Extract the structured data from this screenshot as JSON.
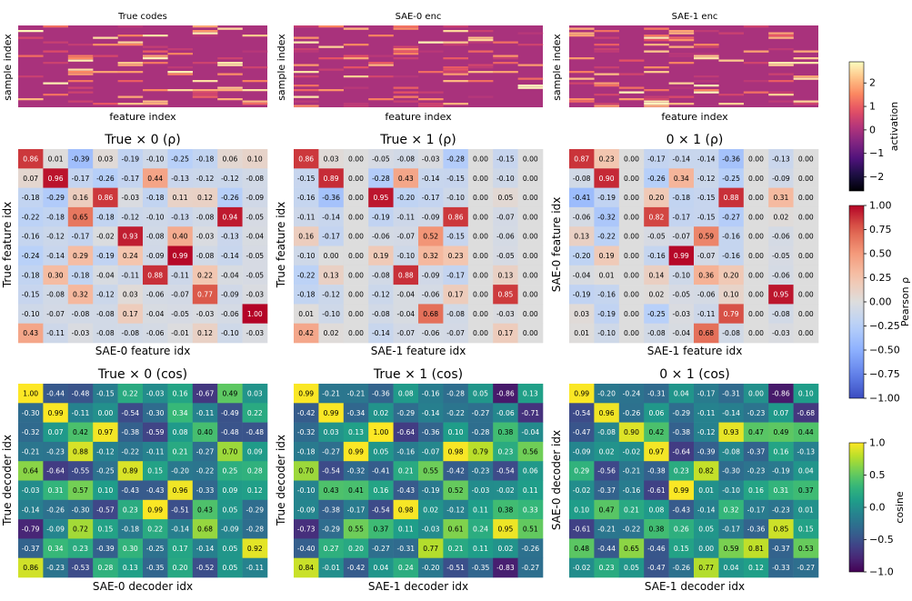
{
  "panels_top": [
    {
      "title": "True codes",
      "xlabel": "feature index",
      "ylabel": "sample index"
    },
    {
      "title": "SAE-0 enc",
      "xlabel": "feature index",
      "ylabel": "sample index"
    },
    {
      "title": "SAE-1 enc",
      "xlabel": "feature index",
      "ylabel": "sample index"
    }
  ],
  "colorbars": {
    "activation": {
      "label": "activation",
      "ticks": [
        "2",
        "1",
        "0",
        "−1",
        "−2"
      ],
      "tick_values": [
        2,
        1,
        0,
        -1,
        -2
      ],
      "range": [
        -2.6,
        2.9
      ],
      "colormap": "magma"
    },
    "pearson": {
      "label": "Pearson ρ",
      "ticks": [
        "1.00",
        "0.75",
        "0.50",
        "0.25",
        "0.00",
        "−0.25",
        "−0.50",
        "−0.75",
        "−1.00"
      ],
      "tick_values": [
        1,
        0.75,
        0.5,
        0.25,
        0,
        -0.25,
        -0.5,
        -0.75,
        -1
      ],
      "range": [
        -1,
        1
      ],
      "colormap": "coolwarm"
    },
    "cosine": {
      "label": "cosine",
      "ticks": [
        "1.0",
        "0.5",
        "0.0",
        "−0.5",
        "−1.0"
      ],
      "tick_values": [
        1,
        0.5,
        0,
        -0.5,
        -1
      ],
      "range": [
        -1,
        1
      ],
      "colormap": "viridis"
    }
  },
  "chart_data": [
    {
      "type": "heatmap",
      "title": "True × 0 (ρ)",
      "xlabel": "SAE-0 feature idx",
      "ylabel": "True feature idx",
      "colormap": "coolwarm",
      "values": [
        [
          0.86,
          0.01,
          -0.39,
          0.03,
          -0.19,
          -0.1,
          -0.25,
          -0.18,
          0.06,
          0.1
        ],
        [
          0.07,
          0.96,
          -0.17,
          -0.26,
          -0.17,
          0.44,
          -0.13,
          -0.12,
          -0.12,
          -0.08
        ],
        [
          -0.18,
          -0.29,
          0.16,
          0.86,
          -0.03,
          -0.18,
          0.11,
          0.12,
          -0.26,
          -0.09
        ],
        [
          -0.22,
          -0.18,
          0.65,
          -0.18,
          -0.12,
          -0.1,
          -0.13,
          -0.08,
          0.94,
          -0.05
        ],
        [
          -0.16,
          -0.12,
          -0.17,
          -0.02,
          0.93,
          -0.08,
          0.4,
          -0.03,
          -0.13,
          -0.04
        ],
        [
          -0.24,
          -0.14,
          0.29,
          -0.19,
          0.24,
          -0.09,
          0.99,
          -0.08,
          -0.14,
          -0.05
        ],
        [
          -0.18,
          0.3,
          -0.18,
          -0.04,
          -0.11,
          0.88,
          -0.11,
          0.22,
          -0.04,
          -0.05
        ],
        [
          -0.15,
          -0.08,
          0.32,
          -0.12,
          0.03,
          -0.06,
          -0.07,
          0.77,
          -0.09,
          -0.03
        ],
        [
          -0.1,
          -0.07,
          -0.08,
          -0.08,
          0.17,
          -0.04,
          -0.05,
          -0.03,
          -0.06,
          1.0
        ],
        [
          0.43,
          -0.11,
          -0.03,
          -0.08,
          -0.08,
          -0.06,
          -0.01,
          0.12,
          -0.1,
          -0.03
        ]
      ]
    },
    {
      "type": "heatmap",
      "title": "True × 1 (ρ)",
      "xlabel": "SAE-1 feature idx",
      "ylabel": "True feature idx",
      "colormap": "coolwarm",
      "values": [
        [
          0.86,
          0.03,
          0.0,
          -0.05,
          -0.08,
          -0.03,
          -0.28,
          0.0,
          -0.15,
          0.0
        ],
        [
          -0.15,
          0.89,
          0.0,
          -0.28,
          0.43,
          -0.14,
          -0.15,
          0.0,
          -0.1,
          0.0
        ],
        [
          -0.16,
          -0.36,
          0.0,
          0.95,
          -0.2,
          -0.17,
          -0.1,
          0.0,
          0.05,
          0.0
        ],
        [
          -0.11,
          -0.14,
          0.0,
          -0.19,
          -0.11,
          -0.09,
          0.86,
          0.0,
          -0.07,
          0.0
        ],
        [
          0.16,
          -0.17,
          0.0,
          -0.06,
          -0.07,
          0.52,
          -0.15,
          0.0,
          -0.06,
          0.0
        ],
        [
          -0.1,
          -0.0,
          0.0,
          0.19,
          -0.1,
          0.32,
          0.23,
          0.0,
          -0.05,
          0.0
        ],
        [
          -0.22,
          0.13,
          0.0,
          -0.08,
          0.88,
          -0.09,
          -0.17,
          0.0,
          0.13,
          0.0
        ],
        [
          -0.18,
          -0.12,
          0.0,
          -0.12,
          -0.04,
          -0.06,
          0.17,
          0.0,
          0.85,
          0.0
        ],
        [
          0.01,
          -0.1,
          0.0,
          -0.08,
          -0.04,
          0.68,
          -0.08,
          0.0,
          -0.03,
          0.0
        ],
        [
          0.42,
          0.02,
          0.0,
          -0.14,
          -0.07,
          -0.06,
          -0.07,
          0.0,
          0.17,
          0.0
        ]
      ]
    },
    {
      "type": "heatmap",
      "title": "0 × 1 (ρ)",
      "xlabel": "SAE-1 feature idx",
      "ylabel": "SAE-0 feature idx",
      "colormap": "coolwarm",
      "values": [
        [
          0.87,
          0.23,
          0.0,
          -0.17,
          -0.14,
          -0.14,
          -0.36,
          0.0,
          -0.13,
          0.0
        ],
        [
          -0.08,
          0.9,
          0.0,
          -0.26,
          0.34,
          -0.12,
          -0.25,
          0.0,
          -0.09,
          0.0
        ],
        [
          -0.41,
          -0.19,
          0.0,
          0.2,
          -0.18,
          -0.15,
          0.88,
          0.0,
          0.31,
          0.0
        ],
        [
          -0.06,
          -0.32,
          0.0,
          0.82,
          -0.17,
          -0.15,
          -0.27,
          0.0,
          0.02,
          0.0
        ],
        [
          0.13,
          -0.22,
          0.0,
          -0.05,
          -0.07,
          0.59,
          -0.16,
          0.0,
          -0.06,
          0.0
        ],
        [
          -0.2,
          0.19,
          0.0,
          -0.16,
          0.99,
          -0.07,
          -0.16,
          0.0,
          -0.05,
          0.0
        ],
        [
          -0.04,
          0.01,
          0.0,
          0.14,
          -0.1,
          0.36,
          0.2,
          0.0,
          -0.06,
          0.0
        ],
        [
          -0.19,
          -0.16,
          0.0,
          0.02,
          -0.05,
          -0.06,
          0.1,
          0.0,
          0.95,
          0.0
        ],
        [
          0.03,
          -0.19,
          0.0,
          -0.25,
          -0.03,
          -0.11,
          0.79,
          0.0,
          -0.08,
          0.0
        ],
        [
          0.01,
          -0.1,
          0.0,
          -0.08,
          -0.04,
          0.68,
          -0.08,
          0.0,
          -0.03,
          0.0
        ]
      ]
    },
    {
      "type": "heatmap",
      "title": "True × 0 (cos)",
      "xlabel": "SAE-0 decoder idx",
      "ylabel": "True decoder idx",
      "colormap": "viridis",
      "values": [
        [
          1.0,
          -0.44,
          -0.48,
          -0.15,
          0.22,
          -0.03,
          0.16,
          -0.67,
          0.49,
          0.03
        ],
        [
          -0.3,
          0.99,
          -0.11,
          -0.0,
          -0.54,
          -0.3,
          0.34,
          -0.11,
          -0.49,
          0.22
        ],
        [
          -0.32,
          0.07,
          0.42,
          0.97,
          -0.38,
          -0.59,
          0.08,
          0.4,
          -0.48,
          -0.48
        ],
        [
          -0.21,
          -0.23,
          0.88,
          -0.12,
          -0.22,
          -0.11,
          0.21,
          -0.27,
          0.7,
          0.09
        ],
        [
          0.64,
          -0.64,
          -0.55,
          -0.25,
          0.89,
          0.15,
          -0.2,
          -0.22,
          0.25,
          0.28
        ],
        [
          -0.03,
          0.31,
          0.57,
          0.1,
          -0.43,
          -0.43,
          0.96,
          -0.33,
          0.09,
          0.12
        ],
        [
          -0.14,
          -0.26,
          -0.3,
          -0.57,
          0.23,
          0.99,
          -0.51,
          0.43,
          0.05,
          -0.29
        ],
        [
          -0.79,
          -0.09,
          0.72,
          0.15,
          -0.18,
          0.22,
          -0.14,
          0.68,
          -0.09,
          -0.28
        ],
        [
          -0.37,
          0.34,
          0.23,
          -0.39,
          0.3,
          -0.25,
          0.17,
          -0.14,
          0.05,
          0.92
        ],
        [
          0.86,
          -0.23,
          -0.53,
          0.28,
          0.13,
          -0.35,
          0.2,
          -0.52,
          0.05,
          -0.11
        ]
      ]
    },
    {
      "type": "heatmap",
      "title": "True × 1 (cos)",
      "xlabel": "SAE-1 decoder idx",
      "ylabel": "True decoder idx",
      "colormap": "viridis",
      "values": [
        [
          0.99,
          -0.21,
          -0.21,
          -0.36,
          0.08,
          -0.16,
          -0.28,
          0.05,
          -0.86,
          0.13
        ],
        [
          -0.42,
          0.99,
          -0.34,
          0.02,
          -0.29,
          -0.14,
          -0.22,
          -0.27,
          -0.06,
          -0.71
        ],
        [
          -0.32,
          0.03,
          0.13,
          1.0,
          -0.64,
          -0.36,
          0.1,
          -0.28,
          0.38,
          -0.04
        ],
        [
          -0.18,
          -0.27,
          0.99,
          0.05,
          -0.16,
          -0.07,
          0.98,
          0.79,
          0.23,
          0.56
        ],
        [
          0.7,
          -0.54,
          -0.32,
          -0.41,
          0.21,
          0.55,
          -0.42,
          -0.23,
          -0.54,
          0.06
        ],
        [
          -0.1,
          0.43,
          0.41,
          0.16,
          -0.43,
          -0.19,
          0.52,
          -0.03,
          -0.02,
          0.11
        ],
        [
          -0.09,
          -0.38,
          -0.17,
          -0.54,
          0.98,
          0.02,
          -0.12,
          0.11,
          0.38,
          0.33
        ],
        [
          -0.73,
          -0.29,
          0.55,
          0.37,
          0.11,
          -0.03,
          0.61,
          0.24,
          0.95,
          0.51
        ],
        [
          -0.4,
          0.27,
          0.2,
          -0.27,
          -0.31,
          0.77,
          0.21,
          0.11,
          0.02,
          -0.26
        ],
        [
          0.84,
          -0.01,
          -0.42,
          0.04,
          0.24,
          -0.2,
          -0.51,
          -0.35,
          -0.83,
          -0.27
        ]
      ]
    },
    {
      "type": "heatmap",
      "title": "0 × 1 (cos)",
      "xlabel": "SAE-1 decoder idx",
      "ylabel": "SAE-0 decoder idx",
      "colormap": "viridis",
      "values": [
        [
          0.99,
          -0.2,
          -0.24,
          -0.31,
          0.04,
          -0.17,
          -0.31,
          0.0,
          -0.86,
          0.1
        ],
        [
          -0.54,
          0.96,
          -0.26,
          0.06,
          -0.29,
          -0.11,
          -0.14,
          -0.23,
          0.07,
          -0.68
        ],
        [
          -0.47,
          -0.08,
          0.9,
          0.42,
          -0.38,
          -0.12,
          0.93,
          0.47,
          0.49,
          0.44
        ],
        [
          -0.09,
          0.02,
          -0.02,
          0.97,
          -0.64,
          -0.39,
          -0.08,
          -0.37,
          0.16,
          -0.13
        ],
        [
          0.29,
          -0.56,
          -0.21,
          -0.38,
          0.23,
          0.82,
          -0.3,
          -0.23,
          -0.19,
          0.04
        ],
        [
          -0.02,
          -0.37,
          -0.16,
          -0.61,
          0.99,
          0.01,
          -0.1,
          0.16,
          0.31,
          0.37
        ],
        [
          0.1,
          0.47,
          0.21,
          0.08,
          -0.43,
          -0.14,
          0.32,
          -0.17,
          -0.23,
          0.01
        ],
        [
          -0.61,
          -0.21,
          -0.22,
          0.38,
          0.26,
          0.05,
          -0.17,
          -0.36,
          0.85,
          0.15
        ],
        [
          0.48,
          -0.44,
          0.65,
          -0.46,
          0.15,
          0.0,
          0.59,
          0.81,
          -0.37,
          0.53
        ],
        [
          -0.02,
          0.23,
          0.05,
          -0.47,
          -0.26,
          0.77,
          0.04,
          0.12,
          -0.33,
          -0.27
        ]
      ]
    }
  ]
}
